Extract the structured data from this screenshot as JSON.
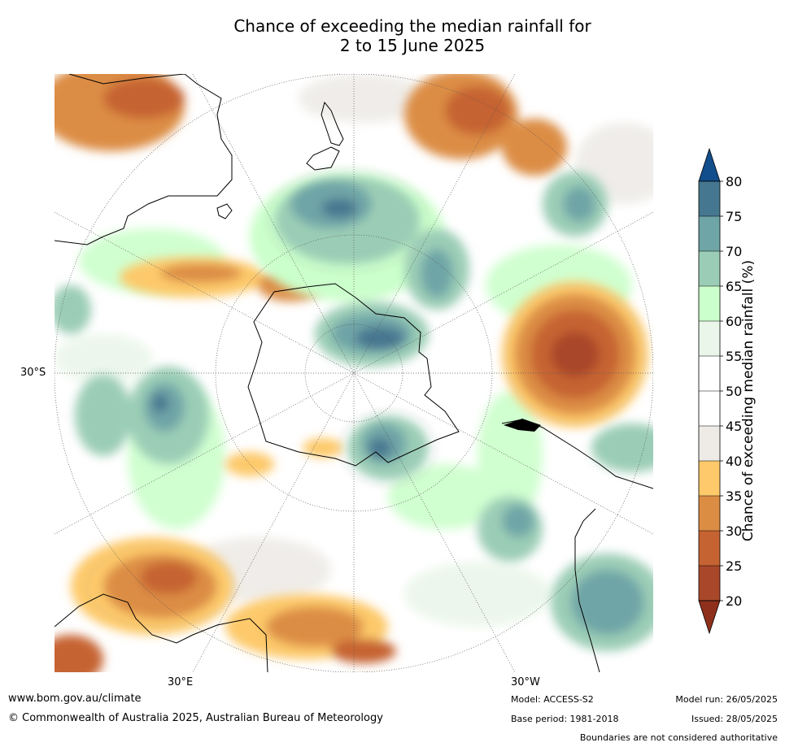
{
  "title_line1": "Chance of exceeding the median rainfall for",
  "title_line2": "2 to 15 June 2025",
  "map_labels": {
    "lat": "30°S",
    "lon_east": "30°E",
    "lon_west": "30°W"
  },
  "colorbar": {
    "label": "Chance of exceeding median rainfall (%)",
    "ticks": [
      "20",
      "25",
      "30",
      "35",
      "40",
      "45",
      "50",
      "55",
      "60",
      "65",
      "70",
      "75",
      "80"
    ],
    "bands": [
      "#a9472a",
      "#c66332",
      "#dc8d44",
      "#fdc96a",
      "#eeebe7",
      "#ffffff",
      "#ffffff",
      "#eaf6ea",
      "#cbffcb",
      "#9bcdb6",
      "#6fa5a7",
      "#467790"
    ],
    "under_color": "#8f301c",
    "over_color": "#124e8c"
  },
  "footer": {
    "website": "www.bom.gov.au/climate",
    "copyright": "© Commonwealth of Australia 2025, Australian Bureau of Meteorology",
    "model": "Model: ACCESS-S2",
    "base_period": "Base period: 1981-2018",
    "model_run": "Model run: 26/05/2025",
    "issued": "Issued: 28/05/2025",
    "boundaries": "Boundaries are not considered authoritative"
  }
}
